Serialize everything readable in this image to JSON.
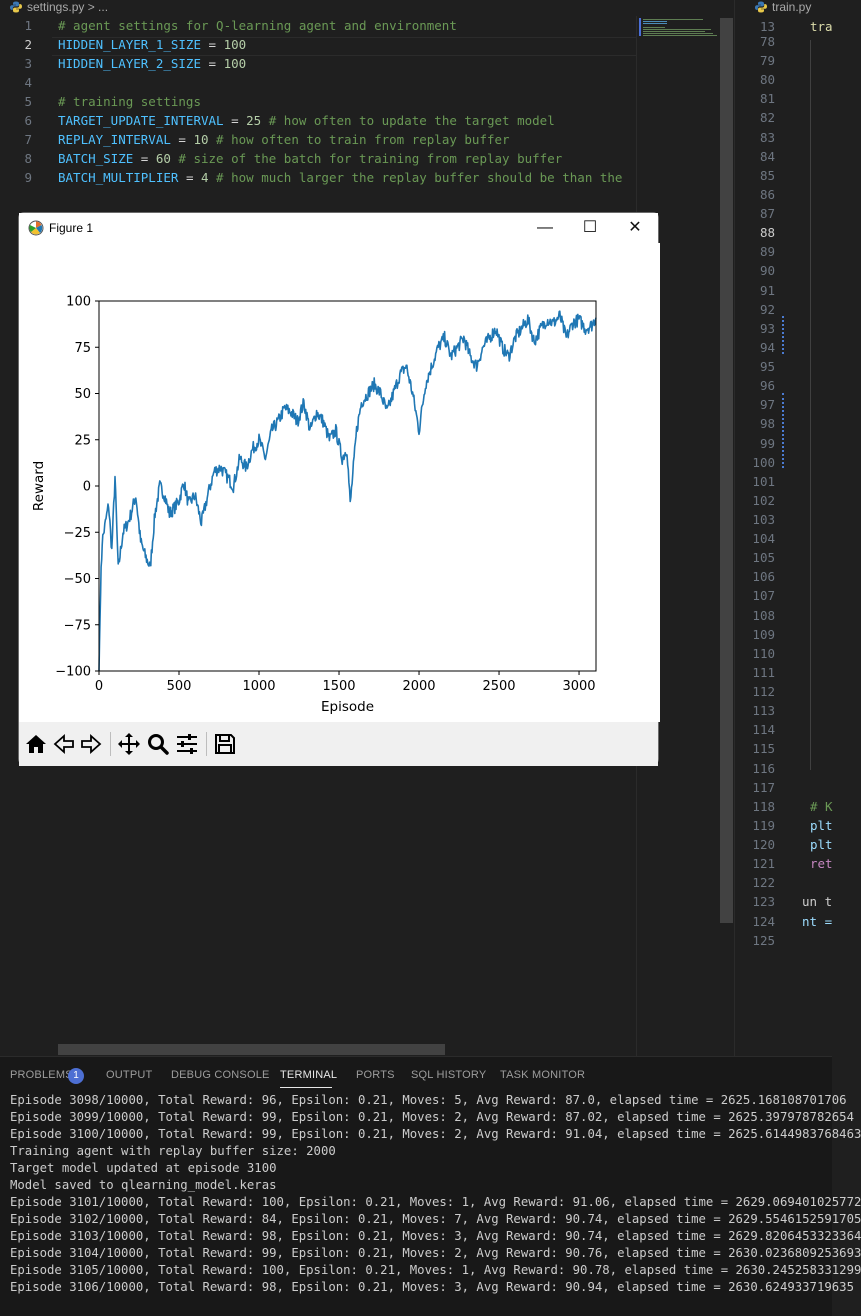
{
  "left_editor": {
    "tab_file": "settings.py",
    "tab_crumb": "settings.py > ...",
    "lines": [
      {
        "n": "1",
        "parts": [
          {
            "t": "# agent settings for Q-learning agent and environment",
            "c": "com"
          }
        ]
      },
      {
        "n": "2",
        "parts": [
          {
            "t": "HIDDEN_LAYER_1_SIZE",
            "c": "const"
          },
          {
            "t": " = ",
            "c": "op"
          },
          {
            "t": "100",
            "c": "num"
          }
        ]
      },
      {
        "n": "3",
        "parts": [
          {
            "t": "HIDDEN_LAYER_2_SIZE",
            "c": "const"
          },
          {
            "t": " = ",
            "c": "op"
          },
          {
            "t": "100",
            "c": "num"
          }
        ]
      },
      {
        "n": "4",
        "parts": []
      },
      {
        "n": "5",
        "parts": [
          {
            "t": "# training settings",
            "c": "com"
          }
        ]
      },
      {
        "n": "6",
        "parts": [
          {
            "t": "TARGET_UPDATE_INTERVAL",
            "c": "const"
          },
          {
            "t": " = ",
            "c": "op"
          },
          {
            "t": "25",
            "c": "num"
          },
          {
            "t": " # how often to update the target model",
            "c": "com"
          }
        ]
      },
      {
        "n": "7",
        "parts": [
          {
            "t": "REPLAY_INTERVAL",
            "c": "const"
          },
          {
            "t": " = ",
            "c": "op"
          },
          {
            "t": "10",
            "c": "num"
          },
          {
            "t": " # how often to train from replay buffer",
            "c": "com"
          }
        ]
      },
      {
        "n": "8",
        "parts": [
          {
            "t": "BATCH_SIZE",
            "c": "const"
          },
          {
            "t": " = ",
            "c": "op"
          },
          {
            "t": "60",
            "c": "num"
          },
          {
            "t": " # size of the batch for training from replay buffer",
            "c": "com"
          }
        ]
      },
      {
        "n": "9",
        "parts": [
          {
            "t": "BATCH_MULTIPLIER",
            "c": "const"
          },
          {
            "t": " = ",
            "c": "op"
          },
          {
            "t": "4",
            "c": "num"
          },
          {
            "t": " # how much larger the replay buffer should be than the",
            "c": "com"
          }
        ]
      }
    ],
    "active_line": "2"
  },
  "right_editor": {
    "tab_label": "train.py",
    "line_numbers": [
      "13",
      "78",
      "79",
      "80",
      "81",
      "82",
      "83",
      "84",
      "85",
      "86",
      "87",
      "88",
      "89",
      "90",
      "91",
      "92",
      "93",
      "94",
      "95",
      "96",
      "97",
      "98",
      "99",
      "100",
      "101",
      "102",
      "103",
      "104",
      "105",
      "106",
      "107",
      "108",
      "109",
      "110",
      "111",
      "112",
      "113",
      "114",
      "115",
      "116",
      "117",
      "118",
      "119",
      "120",
      "121",
      "122",
      "123",
      "124",
      "125"
    ],
    "active_line": "88",
    "snippets": [
      {
        "line": "13",
        "text": "tra",
        "c": "fn"
      },
      {
        "line": "118",
        "text": "# K",
        "c": "com"
      },
      {
        "line": "119",
        "text": "plt",
        "c": "var"
      },
      {
        "line": "120",
        "text": "plt",
        "c": "var"
      },
      {
        "line": "121",
        "text": "ret",
        "c": "kw"
      },
      {
        "line": "123",
        "text": "un t",
        "c": "op"
      },
      {
        "line": "124",
        "text": "nt =",
        "c": "var"
      }
    ]
  },
  "figure": {
    "title": "Figure 1",
    "minimize_glyph": "—",
    "maximize_glyph": "☐",
    "close_glyph": "✕",
    "toolbar": [
      "home-icon",
      "back-icon",
      "forward-icon",
      "pan-icon",
      "zoom-icon",
      "configure-subplots-icon",
      "save-icon"
    ]
  },
  "chart_data": {
    "type": "line",
    "title": "",
    "xlabel": "Episode",
    "ylabel": "Reward",
    "xlim": [
      0,
      3106
    ],
    "ylim": [
      -100,
      100
    ],
    "xticks": [
      0,
      500,
      1000,
      1500,
      2000,
      2500,
      3000
    ],
    "yticks": [
      -100,
      -75,
      -50,
      -25,
      0,
      25,
      50,
      75,
      100
    ],
    "line_color": "#1f77b4",
    "series": [
      {
        "x": [
          0,
          10,
          20,
          40,
          60,
          80,
          100,
          120,
          150,
          180,
          200,
          230,
          260,
          290,
          320,
          350,
          380,
          410,
          440,
          470,
          500,
          530,
          560,
          600,
          640,
          680,
          720,
          760,
          800,
          840,
          880,
          920,
          960,
          1000,
          1040,
          1080,
          1120,
          1160,
          1200,
          1240,
          1280,
          1320,
          1360,
          1400,
          1440,
          1480,
          1520,
          1550,
          1570,
          1590,
          1610,
          1640,
          1680,
          1720,
          1760,
          1800,
          1840,
          1880,
          1920,
          1960,
          2000,
          2040,
          2080,
          2120,
          2160,
          2200,
          2240,
          2280,
          2320,
          2360,
          2400,
          2440,
          2480,
          2520,
          2560,
          2600,
          2640,
          2680,
          2720,
          2760,
          2800,
          2840,
          2880,
          2920,
          2960,
          3000,
          3040,
          3080,
          3106
        ],
        "y": [
          -100,
          -55,
          -30,
          -20,
          -10,
          -35,
          5,
          -45,
          -25,
          -20,
          -15,
          -5,
          -30,
          -38,
          -44,
          -15,
          0,
          -5,
          -15,
          -12,
          -8,
          2,
          -10,
          -5,
          -20,
          -5,
          8,
          10,
          5,
          0,
          15,
          10,
          20,
          25,
          15,
          30,
          35,
          42,
          40,
          35,
          45,
          30,
          40,
          35,
          25,
          30,
          15,
          20,
          -10,
          10,
          30,
          45,
          50,
          55,
          50,
          40,
          50,
          60,
          65,
          50,
          30,
          55,
          65,
          75,
          80,
          70,
          75,
          80,
          70,
          65,
          75,
          80,
          85,
          75,
          70,
          80,
          85,
          90,
          78,
          85,
          90,
          88,
          92,
          80,
          88,
          90,
          85,
          87,
          91
        ]
      }
    ]
  },
  "panel": {
    "tabs": [
      {
        "key": "problems",
        "label": "PROBLEMS"
      },
      {
        "key": "output",
        "label": "OUTPUT"
      },
      {
        "key": "debug",
        "label": "DEBUG CONSOLE"
      },
      {
        "key": "terminal",
        "label": "TERMINAL"
      },
      {
        "key": "ports",
        "label": "PORTS"
      },
      {
        "key": "sql",
        "label": "SQL HISTORY"
      },
      {
        "key": "taskmon",
        "label": "TASK MONITOR"
      }
    ],
    "active_tab": "terminal",
    "problems_count": "1",
    "terminal_lines": [
      "Episode 3098/10000, Total Reward: 96, Epsilon: 0.21, Moves: 5, Avg Reward: 87.0, elapsed time = 2625.168108701706",
      "Episode 3099/10000, Total Reward: 99, Epsilon: 0.21, Moves: 2, Avg Reward: 87.02, elapsed time = 2625.397978782654",
      "Episode 3100/10000, Total Reward: 99, Epsilon: 0.21, Moves: 2, Avg Reward: 91.04, elapsed time = 2625.6144983768463",
      "Training agent with replay buffer size: 2000",
      "Target model updated at episode 3100",
      "Model saved to qlearning_model.keras",
      "Episode 3101/10000, Total Reward: 100, Epsilon: 0.21, Moves: 1, Avg Reward: 91.06, elapsed time = 2629.069401025772",
      "Episode 3102/10000, Total Reward: 84, Epsilon: 0.21, Moves: 7, Avg Reward: 90.74, elapsed time = 2629.5546152591705",
      "Episode 3103/10000, Total Reward: 98, Epsilon: 0.21, Moves: 3, Avg Reward: 90.74, elapsed time = 2629.8206453323364",
      "Episode 3104/10000, Total Reward: 99, Epsilon: 0.21, Moves: 2, Avg Reward: 90.76, elapsed time = 2630.0236809253693",
      "Episode 3105/10000, Total Reward: 100, Epsilon: 0.21, Moves: 1, Avg Reward: 90.78, elapsed time = 2630.245258331299",
      "Episode 3106/10000, Total Reward: 98, Epsilon: 0.21, Moves: 3, Avg Reward: 90.94, elapsed time = 2630.624933719635"
    ]
  }
}
